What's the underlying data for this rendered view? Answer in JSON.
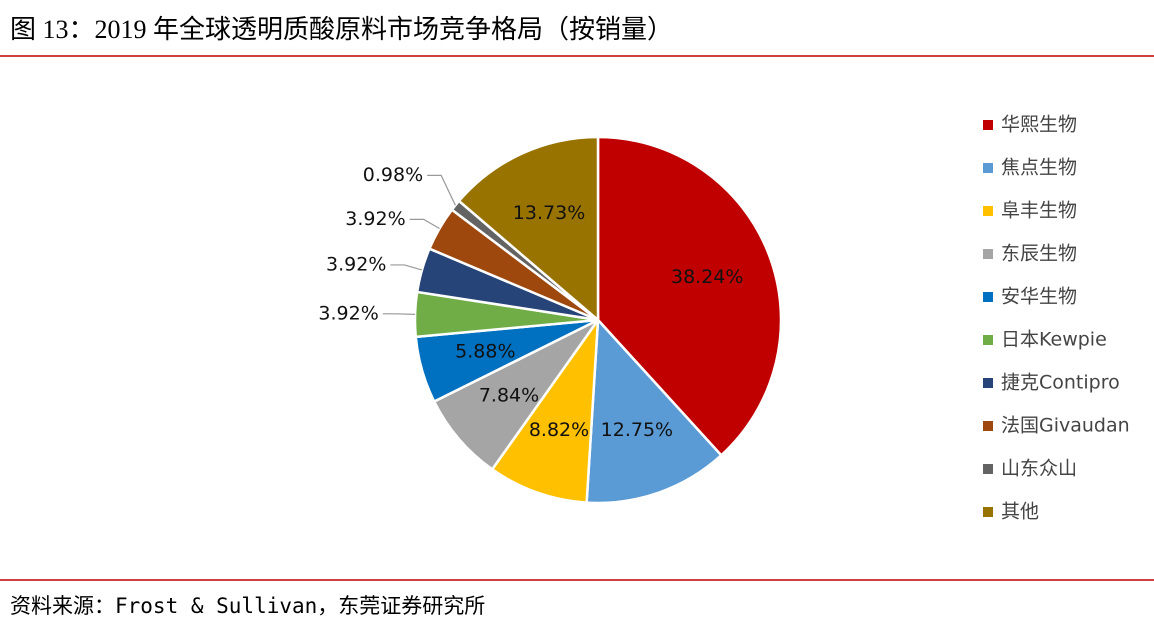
{
  "chart_data": {
    "type": "pie",
    "title": "图 13：2019 年全球透明质酸原料市场竞争格局（按销量）",
    "source": "资料来源：Frost & Sullivan，东莞证券研究所",
    "categories": [
      "华熙生物",
      "焦点生物",
      "阜丰生物",
      "东辰生物",
      "安华生物",
      "日本Kewpie",
      "捷克Contipro",
      "法国Givaudan",
      "山东众山",
      "其他"
    ],
    "values": [
      38.24,
      12.75,
      8.82,
      7.84,
      5.88,
      3.92,
      3.92,
      3.92,
      0.98,
      13.73
    ],
    "value_labels": [
      "38.24%",
      "12.75%",
      "8.82%",
      "7.84%",
      "5.88%",
      "3.92%",
      "3.92%",
      "3.92%",
      "0.98%",
      "13.73%"
    ],
    "colors": [
      "#C00000",
      "#5B9BD5",
      "#FFC000",
      "#A5A5A5",
      "#0070C0",
      "#70AD47",
      "#264478",
      "#9E480E",
      "#636363",
      "#997300"
    ],
    "legend": "right"
  }
}
